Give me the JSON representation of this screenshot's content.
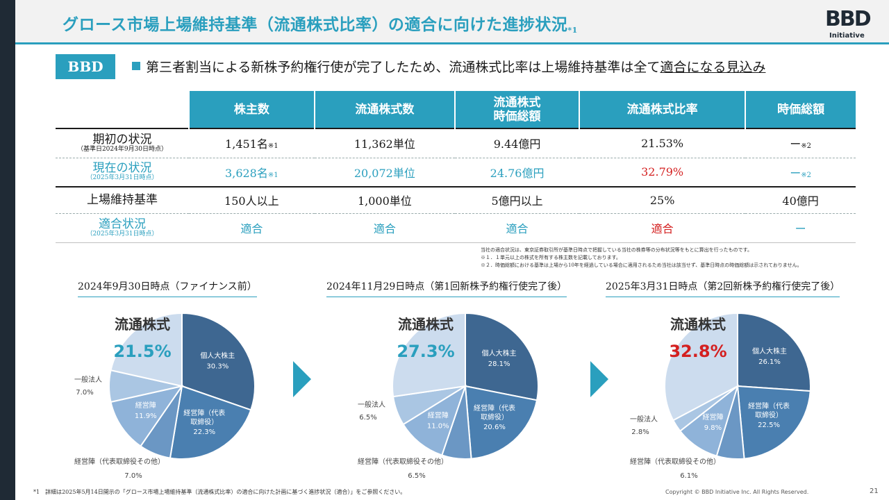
{
  "header": {
    "title": "グロース市場上場維持基準（流通株式比率）の適合に向けた進捗状況",
    "title_mark": "*1",
    "logo_text": "BBD",
    "logo_sub": "Initiative"
  },
  "headline": {
    "badge": "BBD",
    "text_before": "第三者割当による新株予約権行使が完了したため、流通株式比率は上場維持基準は全て",
    "text_underlined": "適合になる見込み"
  },
  "table": {
    "headers": [
      "株主数",
      "流通株式数",
      "流通株式\n時価総額",
      "流通株式比率",
      "時価総額"
    ],
    "rows": [
      {
        "label": "期初の状況",
        "sub": "（基準日2024年9月30日時点）",
        "cells": [
          "1,451名",
          "11,362単位",
          "9.44億円",
          "21.53%",
          "ー"
        ],
        "marks": [
          "※1",
          "",
          "",
          "",
          "※2"
        ]
      },
      {
        "label": "現在の状況",
        "sub": "（2025年3月31日時点）",
        "cells": [
          "3,628名",
          "20,072単位",
          "24.76億円",
          "32.79%",
          "ー"
        ],
        "marks": [
          "※1",
          "",
          "",
          "",
          "※2"
        ]
      },
      {
        "label": "上場維持基準",
        "sub": "",
        "cells": [
          "150人以上",
          "1,000単位",
          "5億円以上",
          "25%",
          "40億円"
        ],
        "marks": [
          "",
          "",
          "",
          "",
          ""
        ]
      },
      {
        "label": "適合状況",
        "sub": "（2025年3月31日時点）",
        "cells": [
          "適合",
          "適合",
          "適合",
          "適合",
          "ー"
        ],
        "marks": [
          "",
          "",
          "",
          "",
          ""
        ]
      }
    ],
    "notes": [
      "当社の適合状況は、東京証券取引所が基準日時点で把握している当社の株券等の分布状況等をもとに算出を行ったものです。",
      "※１．１単元以上の株式を所有する株主数を記載しております。",
      "※２．時価総額における基準は上場から10年を経過している場合に適用されるため当社は該当せず、基準日時点の時価総額は示されておりません。"
    ]
  },
  "colors": {
    "accent": "#2a9fbe",
    "red": "#d42020",
    "slice_individual": "#3e6791",
    "slice_exec_rep": "#4a7fb0",
    "slice_exec_other": "#6b97c4",
    "slice_exec": "#8fb3d9",
    "slice_corp": "#aac6e3",
    "slice_float": "#ccdcee"
  },
  "chart_data": [
    {
      "type": "pie",
      "title": "2024年9月30日時点（ファイナンス前）",
      "float_label": "流通株式",
      "float_value": "21.5%",
      "slices": [
        {
          "label": "個人大株主",
          "value": 30.3
        },
        {
          "label": "経営陣（代表取締役）",
          "value": 22.3
        },
        {
          "label": "経営陣（代表取締役その他）",
          "value": 7.0
        },
        {
          "label": "経営陣",
          "value": 11.9
        },
        {
          "label": "一般法人",
          "value": 7.0
        },
        {
          "label": "流通株式",
          "value": 21.5
        }
      ]
    },
    {
      "type": "pie",
      "title": "2024年11月29日時点（第1回新株予約権行使完了後）",
      "float_label": "流通株式",
      "float_value": "27.3%",
      "slices": [
        {
          "label": "個人大株主",
          "value": 28.1
        },
        {
          "label": "経営陣（代表取締役）",
          "value": 20.6
        },
        {
          "label": "経営陣（代表取締役その他）",
          "value": 6.5
        },
        {
          "label": "経営陣",
          "value": 11.0
        },
        {
          "label": "一般法人",
          "value": 6.5
        },
        {
          "label": "流通株式",
          "value": 27.3
        }
      ]
    },
    {
      "type": "pie",
      "title": "2025年3月31日時点（第2回新株予約権行使完了後）",
      "float_label": "流通株式",
      "float_value": "32.8%",
      "slices": [
        {
          "label": "個人大株主",
          "value": 26.1
        },
        {
          "label": "経営陣（代表取締役）",
          "value": 22.5
        },
        {
          "label": "経営陣（代表取締役その他）",
          "value": 6.1
        },
        {
          "label": "経営陣",
          "value": 9.8
        },
        {
          "label": "一般法人",
          "value": 2.8
        },
        {
          "label": "流通株式",
          "value": 32.8
        }
      ]
    }
  ],
  "footer": {
    "footnote": "*1　詳細は2025年5月14日開示の「グロース市場上場維持基準（流通株式比率）の適合に向けた計画に基づく進捗状況（適合）」をご参照ください。",
    "copyright": "Copyright © BBD Initiative Inc. All Rights Reserved.",
    "page": "21"
  }
}
